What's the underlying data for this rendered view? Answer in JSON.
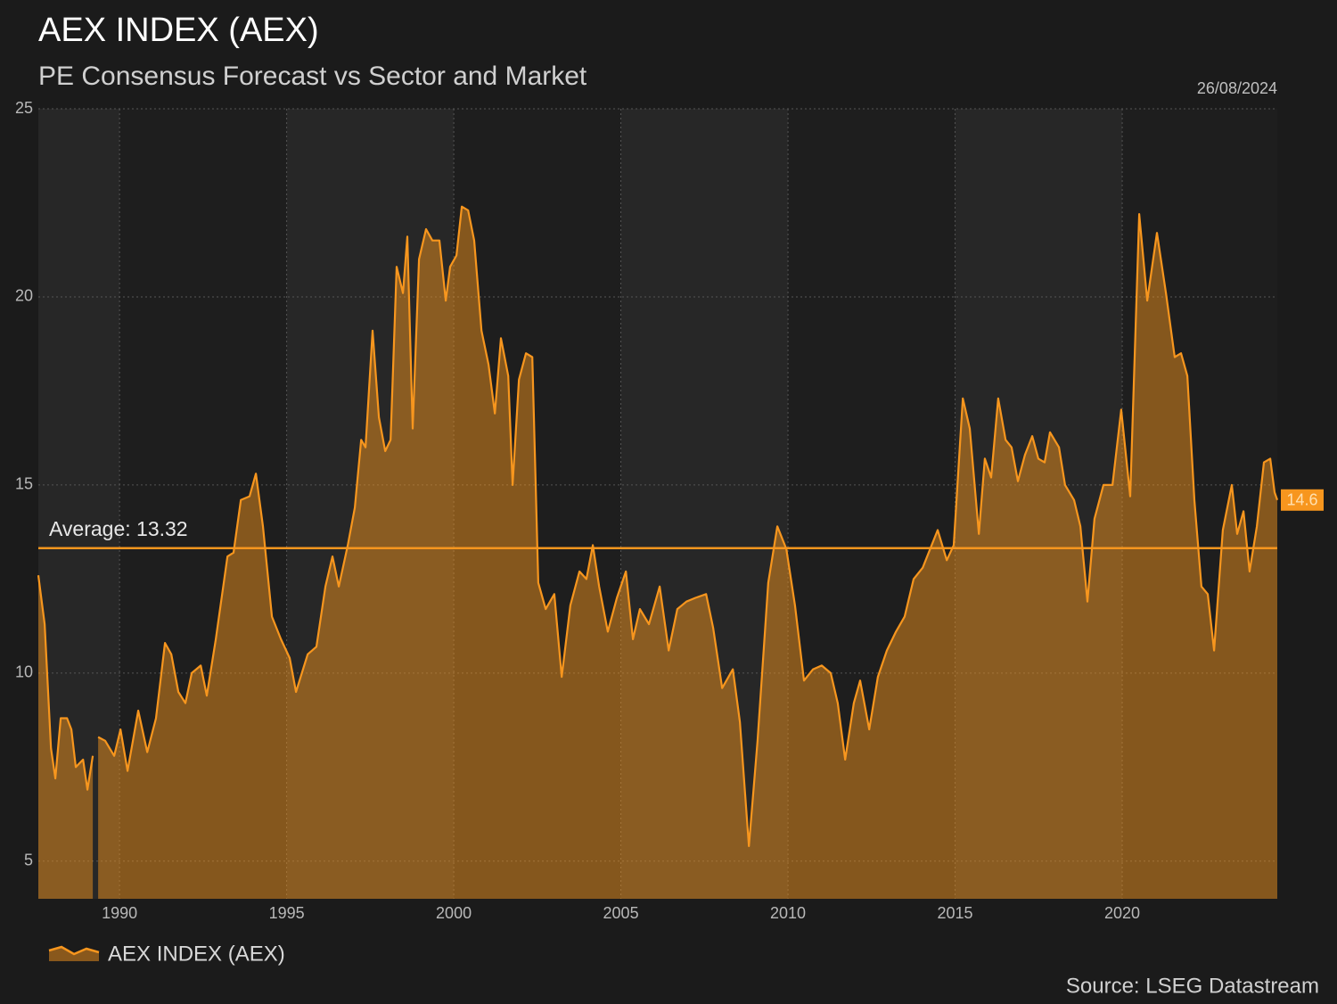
{
  "chart_data": {
    "type": "area",
    "title": "AEX INDEX (AEX)",
    "subtitle": "PE Consensus Forecast vs Sector and Market",
    "date": "26/08/2024",
    "source": "Source: LSEG Datastream",
    "average": 13.32,
    "average_label": "Average: 13.32",
    "xlim": [
      1987.57,
      2024.64
    ],
    "xticks": [
      1990,
      1995,
      2000,
      2005,
      2010,
      2015,
      2020
    ],
    "ylim": [
      4,
      25
    ],
    "yticks": [
      5,
      10,
      15,
      20,
      25
    ],
    "grid": true,
    "x": [
      1987.57,
      1987.76,
      1987.95,
      1988.08,
      1988.24,
      1988.43,
      1988.56,
      1988.69,
      1988.91,
      1989.04,
      1989.2,
      1989.28,
      1989.36,
      1989.57,
      1989.84,
      1990.03,
      1990.24,
      1990.56,
      1990.83,
      1991.09,
      1991.36,
      1991.55,
      1991.76,
      1991.97,
      1992.16,
      1992.43,
      1992.61,
      1992.88,
      1993.23,
      1993.41,
      1993.63,
      1993.89,
      1994.08,
      1994.29,
      1994.56,
      1994.83,
      1995.09,
      1995.28,
      1995.63,
      1995.89,
      1996.16,
      1996.37,
      1996.56,
      1996.83,
      1997.04,
      1997.23,
      1997.36,
      1997.57,
      1997.76,
      1997.95,
      1998.11,
      1998.29,
      1998.48,
      1998.61,
      1998.77,
      1998.96,
      1999.17,
      1999.36,
      1999.57,
      1999.76,
      1999.89,
      2000.08,
      2000.24,
      2000.43,
      2000.61,
      2000.83,
      2001.04,
      2001.23,
      2001.41,
      2001.63,
      2001.76,
      2001.95,
      2002.16,
      2002.35,
      2002.53,
      2002.75,
      2003.01,
      2003.23,
      2003.49,
      2003.76,
      2003.97,
      2004.16,
      2004.35,
      2004.61,
      2004.88,
      2005.15,
      2005.36,
      2005.57,
      2005.84,
      2006.16,
      2006.43,
      2006.69,
      2006.96,
      2007.23,
      2007.55,
      2007.76,
      2008.03,
      2008.35,
      2008.56,
      2008.83,
      2009.09,
      2009.41,
      2009.68,
      2009.95,
      2010.21,
      2010.48,
      2010.75,
      2011.01,
      2011.28,
      2011.49,
      2011.71,
      2011.97,
      2012.16,
      2012.43,
      2012.69,
      2012.96,
      2013.23,
      2013.49,
      2013.76,
      2014.03,
      2014.21,
      2014.48,
      2014.75,
      2014.96,
      2015.23,
      2015.44,
      2015.71,
      2015.89,
      2016.08,
      2016.29,
      2016.51,
      2016.69,
      2016.88,
      2017.09,
      2017.31,
      2017.49,
      2017.68,
      2017.84,
      2018.11,
      2018.29,
      2018.56,
      2018.75,
      2018.96,
      2019.17,
      2019.44,
      2019.71,
      2019.97,
      2020.24,
      2020.51,
      2020.75,
      2021.04,
      2021.31,
      2021.57,
      2021.76,
      2021.95,
      2022.16,
      2022.37,
      2022.56,
      2022.75,
      2023.01,
      2023.28,
      2023.44,
      2023.63,
      2023.81,
      2024.03,
      2024.24,
      2024.43,
      2024.56,
      2024.64
    ],
    "series": [
      {
        "name": "AEX INDEX (AEX)",
        "color": "#f7961e",
        "values": [
          12.6,
          11.3,
          8.0,
          7.2,
          8.8,
          8.8,
          8.5,
          7.5,
          7.7,
          6.9,
          7.8,
          null,
          8.3,
          8.2,
          7.8,
          8.5,
          7.4,
          9.0,
          7.9,
          8.8,
          10.8,
          10.5,
          9.5,
          9.2,
          10.0,
          10.2,
          9.4,
          10.9,
          13.1,
          13.2,
          14.6,
          14.7,
          15.3,
          13.9,
          11.5,
          10.9,
          10.4,
          9.5,
          10.5,
          10.7,
          12.3,
          13.1,
          12.3,
          13.4,
          14.4,
          16.2,
          16.0,
          19.1,
          16.8,
          15.9,
          16.2,
          20.8,
          20.1,
          21.6,
          16.5,
          21.0,
          21.8,
          21.5,
          21.5,
          19.9,
          20.8,
          21.1,
          22.4,
          22.3,
          21.5,
          19.1,
          18.2,
          16.9,
          18.9,
          17.9,
          15.0,
          17.8,
          18.5,
          18.4,
          12.4,
          11.7,
          12.1,
          9.9,
          11.8,
          12.7,
          12.5,
          13.4,
          12.3,
          11.1,
          12.0,
          12.7,
          10.9,
          11.7,
          11.3,
          12.3,
          10.6,
          11.7,
          11.9,
          12.0,
          12.1,
          11.2,
          9.6,
          10.1,
          8.7,
          5.4,
          8.2,
          12.4,
          13.9,
          13.3,
          11.8,
          9.8,
          10.1,
          10.2,
          10.0,
          9.2,
          7.7,
          9.2,
          9.8,
          8.5,
          9.9,
          10.6,
          11.1,
          11.5,
          12.5,
          12.8,
          13.2,
          13.8,
          13.0,
          13.4,
          17.3,
          16.5,
          13.7,
          15.7,
          15.2,
          17.3,
          16.2,
          16.0,
          15.1,
          15.8,
          16.3,
          15.7,
          15.6,
          16.4,
          16.0,
          15.0,
          14.6,
          13.9,
          11.9,
          14.1,
          15.0,
          15.0,
          17.0,
          14.7,
          22.2,
          19.9,
          21.7,
          20.1,
          18.4,
          18.5,
          17.9,
          14.6,
          12.3,
          12.1,
          10.6,
          13.8,
          15.0,
          13.7,
          14.3,
          12.7,
          13.9,
          15.6,
          15.7,
          14.8,
          14.6
        ]
      }
    ]
  }
}
